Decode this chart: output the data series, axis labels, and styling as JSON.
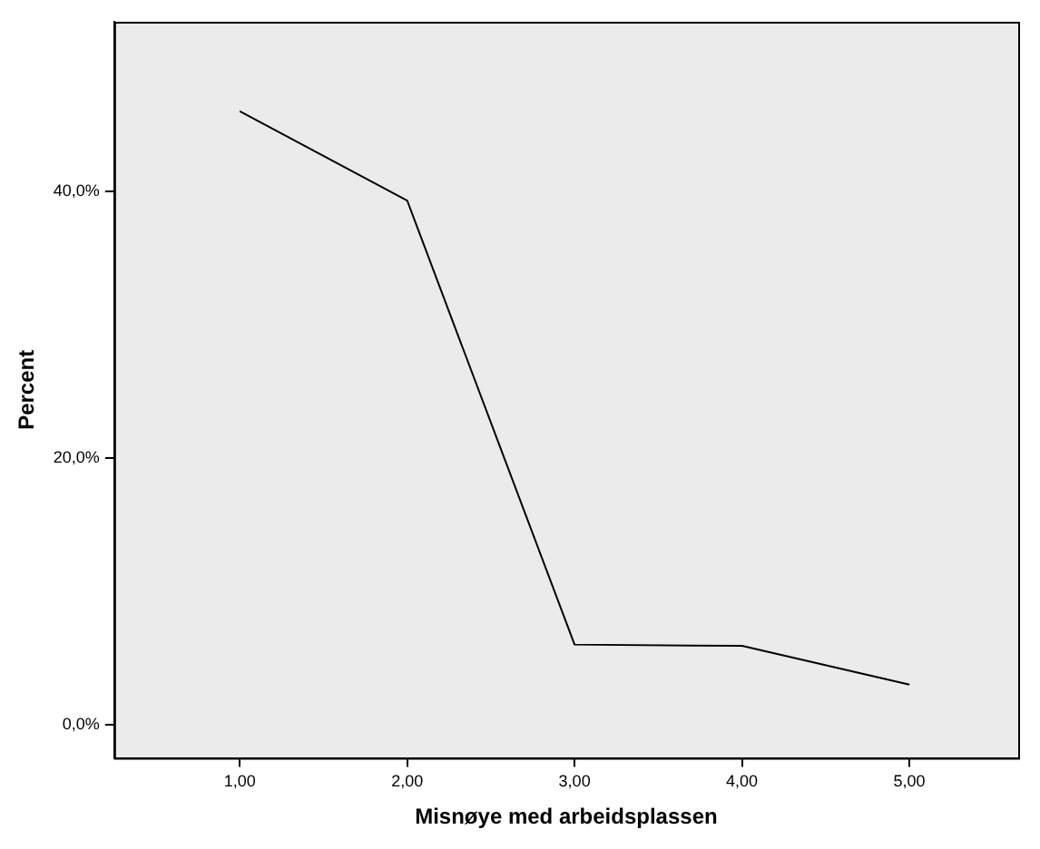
{
  "chart_data": {
    "type": "line",
    "xlabel": "Misnøye med arbeidsplassen",
    "ylabel": "Percent",
    "x": [
      1,
      2,
      3,
      4,
      5
    ],
    "series": [
      {
        "color": "#000000",
        "values": [
          46.0,
          39.3,
          6.0,
          5.9,
          3.0
        ]
      }
    ],
    "xlim": [
      0.25,
      5.65
    ],
    "xticks": [
      {
        "value": 1,
        "label": "1,00"
      },
      {
        "value": 2,
        "label": "2,00"
      },
      {
        "value": 3,
        "label": "3,00"
      },
      {
        "value": 4,
        "label": "4,00"
      },
      {
        "value": 5,
        "label": "5,00"
      }
    ],
    "ylim": [
      -2.5,
      52.7
    ],
    "yticks": [
      {
        "value": 0,
        "label": "0,0%"
      },
      {
        "value": 20,
        "label": "20,0%"
      },
      {
        "value": 40,
        "label": "40,0%"
      }
    ],
    "grid": false,
    "legend": false,
    "marker": "none",
    "line_style": "solid"
  }
}
